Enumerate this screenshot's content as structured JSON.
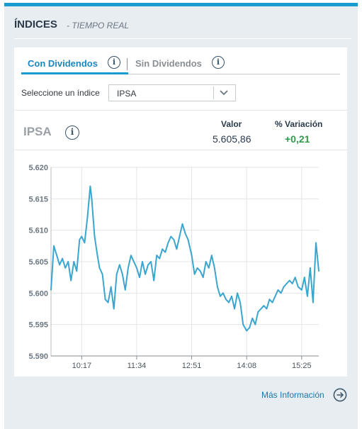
{
  "header": {
    "title": "ÍNDICES",
    "subtitle": "- TIEMPO REAL"
  },
  "tabs": [
    {
      "label": "Con Dividendos",
      "active": true
    },
    {
      "label": "Sin Dividendos",
      "active": false
    }
  ],
  "selector": {
    "label": "Seleccione un índice",
    "value": "IPSA"
  },
  "index": {
    "name": "IPSA",
    "value_header": "Valor",
    "variation_header": "% Variación",
    "value": "5.605,86",
    "variation": "+0,21"
  },
  "chart_data": {
    "type": "line",
    "title": "",
    "xlabel": "",
    "ylabel": "",
    "ylim": [
      5.59,
      5.62
    ],
    "y_ticks": [
      "5.620",
      "5.615",
      "5.610",
      "5.605",
      "5.600",
      "5.595",
      "5.590"
    ],
    "x_ticks": [
      "10:17",
      "11:34",
      "12:51",
      "14:08",
      "15:25"
    ],
    "grid": true,
    "series": [
      {
        "x": [
          "09:34",
          "09:38",
          "09:42",
          "09:46",
          "09:50",
          "09:54",
          "09:58",
          "10:02",
          "10:06",
          "10:10",
          "10:14",
          "10:17",
          "10:21",
          "10:25",
          "10:29",
          "10:31",
          "10:35",
          "10:39",
          "10:42",
          "10:46",
          "10:50",
          "10:54",
          "10:58",
          "11:02",
          "11:06",
          "11:10",
          "11:14",
          "11:18",
          "11:22",
          "11:26",
          "11:30",
          "11:34",
          "11:38",
          "11:42",
          "11:46",
          "11:50",
          "11:54",
          "11:58",
          "12:02",
          "12:06",
          "12:10",
          "12:14",
          "12:18",
          "12:22",
          "12:26",
          "12:30",
          "12:34",
          "12:38",
          "12:42",
          "12:46",
          "12:51",
          "12:55",
          "12:59",
          "13:03",
          "13:07",
          "13:11",
          "13:15",
          "13:19",
          "13:23",
          "13:27",
          "13:31",
          "13:35",
          "13:39",
          "13:43",
          "13:47",
          "13:51",
          "13:55",
          "13:59",
          "14:03",
          "14:08",
          "14:12",
          "14:16",
          "14:20",
          "14:24",
          "14:28",
          "14:32",
          "14:36",
          "14:40",
          "14:44",
          "14:48",
          "14:52",
          "14:56",
          "15:00",
          "15:04",
          "15:08",
          "15:12",
          "15:16",
          "15:20",
          "15:25",
          "15:29",
          "15:33",
          "15:37",
          "15:41",
          "15:45",
          "15:49"
        ],
        "y": [
          5.6005,
          5.6075,
          5.606,
          5.6045,
          5.6055,
          5.604,
          5.605,
          5.602,
          5.605,
          5.6035,
          5.6085,
          5.609,
          5.608,
          5.612,
          5.617,
          5.615,
          5.609,
          5.606,
          5.604,
          5.603,
          5.599,
          5.5985,
          5.601,
          5.5975,
          5.603,
          5.6045,
          5.603,
          5.6005,
          5.604,
          5.606,
          5.605,
          5.604,
          5.6025,
          5.605,
          5.603,
          5.6045,
          5.605,
          5.602,
          5.606,
          5.6055,
          5.607,
          5.6065,
          5.608,
          5.609,
          5.6085,
          5.607,
          5.609,
          5.611,
          5.6095,
          5.6085,
          5.606,
          5.603,
          5.604,
          5.6035,
          5.6025,
          5.605,
          5.604,
          5.606,
          5.604,
          5.601,
          5.5995,
          5.6,
          5.599,
          5.5985,
          5.5995,
          5.5975,
          5.6,
          5.5985,
          5.595,
          5.594,
          5.5945,
          5.596,
          5.595,
          5.597,
          5.5975,
          5.598,
          5.5975,
          5.599,
          5.5985,
          5.5995,
          5.6005,
          5.6,
          5.601,
          5.6015,
          5.602,
          5.6015,
          5.6025,
          5.601,
          5.6005,
          5.6025,
          5.5995,
          5.604,
          5.5985,
          5.608,
          5.6035
        ]
      }
    ]
  },
  "footer": {
    "more_label": "Más Información"
  },
  "colors": {
    "accent": "#1a9bcf",
    "line": "#3aa6cf",
    "positive": "#2e9a4a",
    "panel_bg": "#e8edf1"
  },
  "icons": [
    "info-icon",
    "chevron-down-icon",
    "arrow-right-circle-icon"
  ]
}
